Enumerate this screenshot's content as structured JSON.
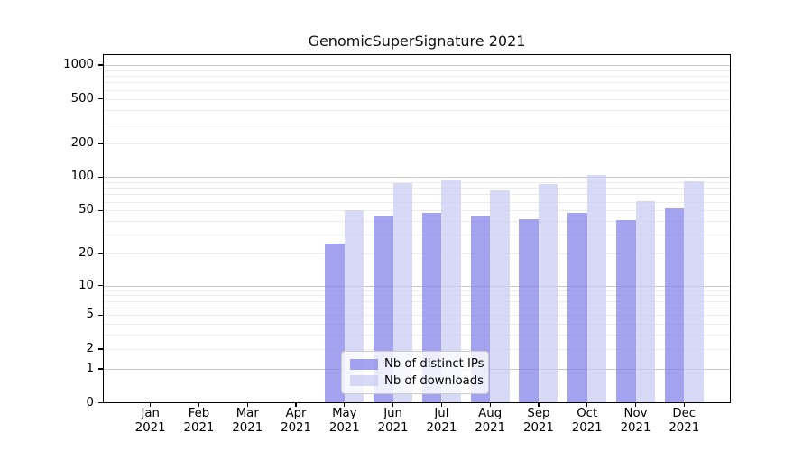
{
  "chart_data": {
    "type": "bar",
    "title": "GenomicSuperSignature 2021",
    "categories": [
      "Jan",
      "Feb",
      "Mar",
      "Apr",
      "May",
      "Jun",
      "Jul",
      "Aug",
      "Sep",
      "Oct",
      "Nov",
      "Dec"
    ],
    "x_tick_year": "2021",
    "series": [
      {
        "name": "Nb of distinct IPs",
        "color": "rgba(134,134,234,0.76)",
        "color_over_white": "#a3a3ef",
        "values": [
          0,
          0,
          0,
          0,
          25,
          44,
          48,
          44,
          42,
          48,
          41,
          52
        ]
      },
      {
        "name": "Nb of downloads",
        "color": "rgba(204,204,244,0.76)",
        "color_over_white": "#d8d8f7",
        "values": [
          0,
          0,
          0,
          0,
          50,
          88,
          93,
          76,
          87,
          104,
          61,
          91
        ]
      }
    ],
    "y_scale": "log1p",
    "y_ticks": [
      0,
      1,
      2,
      5,
      10,
      20,
      50,
      100,
      200,
      500,
      1000
    ],
    "y_major_gridlines": [
      1,
      10,
      100,
      1000
    ],
    "ylim": [
      0,
      1250
    ],
    "xlabel": "",
    "ylabel": "",
    "legend_position": "lower center",
    "colors": {
      "grid_major": "#c8c8c8",
      "grid_minor": "#ececec",
      "axis": "#000000",
      "background": "#ffffff",
      "legend_border": "#cccccc"
    }
  }
}
